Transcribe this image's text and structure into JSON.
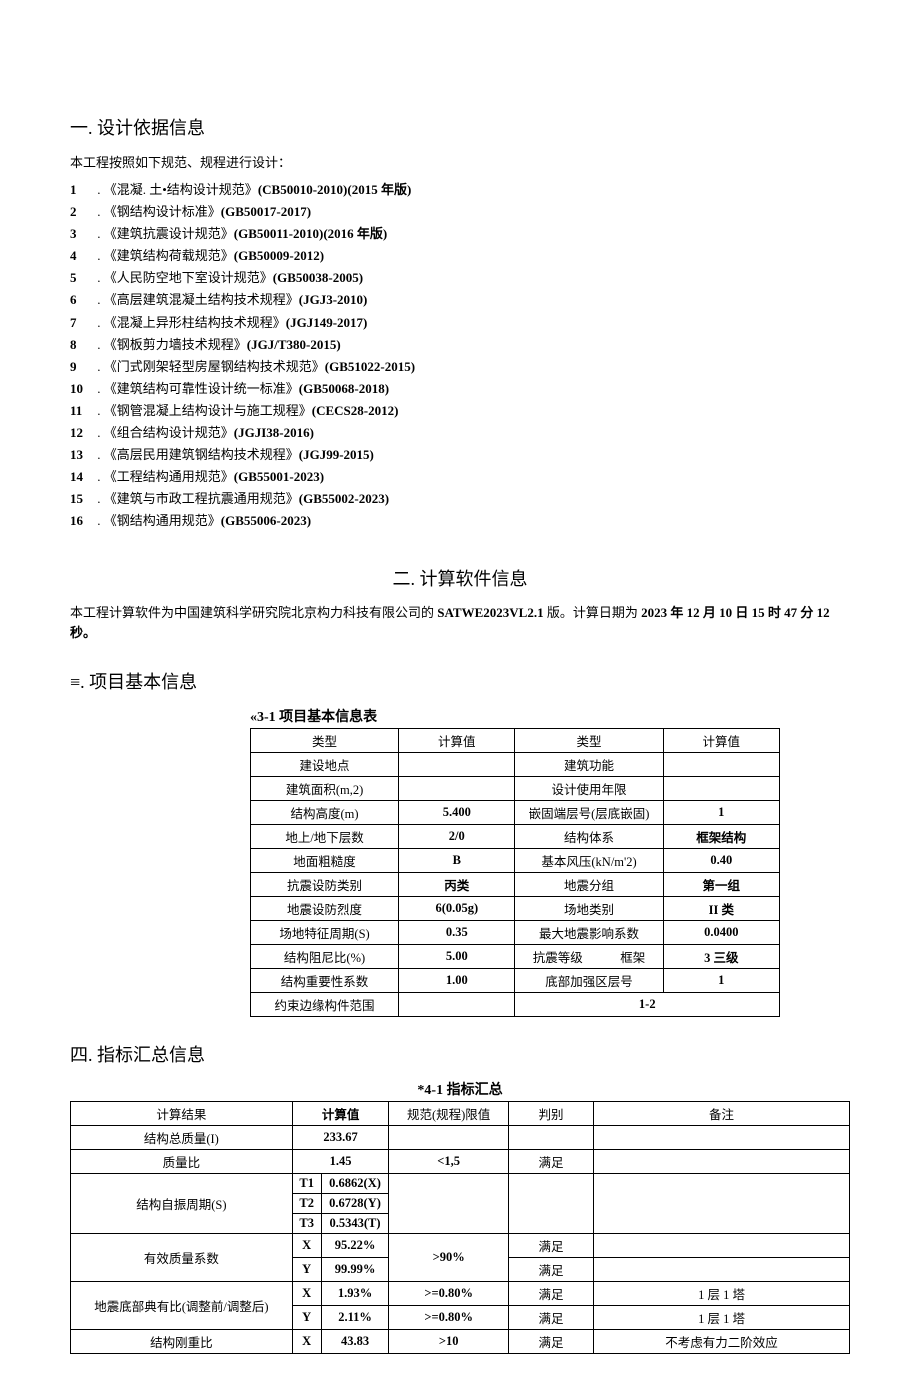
{
  "section1": {
    "heading": "一. 设计依据信息",
    "intro": "本工程按照如下规范、规程进行设计：",
    "items": [
      {
        "n": "1",
        "name": "《混凝. 土•结构设计规范》",
        "code": "(CB50010-2010)(2015 年版)"
      },
      {
        "n": "2",
        "name": "《钢结构设计标准》",
        "code": "(GB50017-2017)"
      },
      {
        "n": "3",
        "name": "《建筑抗震设计规范》",
        "code": "(GB50011-2010)(2016 年版)"
      },
      {
        "n": "4",
        "name": "《建筑结构荷载规范》",
        "code": "(GB50009-2012)"
      },
      {
        "n": "5",
        "name": "《人民防空地下室设计规范》",
        "code": "(GB50038-2005)"
      },
      {
        "n": "6",
        "name": "《高层建筑混凝土结构技术规程》",
        "code": "(JGJ3-2010)"
      },
      {
        "n": "7",
        "name": "《混凝上异形柱结构技术规程》",
        "code": "(JGJ149-2017)"
      },
      {
        "n": "8",
        "name": "《钢板剪力墙技术规程》",
        "code": "(JGJ/T380-2015)"
      },
      {
        "n": "9",
        "name": "《门式刚架轻型房屋钢结构技术规范》",
        "code": "(GB51022-2015)"
      },
      {
        "n": "10",
        "name": "《建筑结构可靠性设计统一标准》",
        "code": "(GB50068-2018)"
      },
      {
        "n": "11",
        "name": "《钢管混凝上结构设计与施工规程》",
        "code": "(CECS28-2012)"
      },
      {
        "n": "12",
        "name": "《组合结构设计规范》",
        "code": "(JGJI38-2016)"
      },
      {
        "n": "13",
        "name": "《高层民用建筑钢结构技术规程》",
        "code": "(JGJ99-2015)"
      },
      {
        "n": "14",
        "name": "《工程结构通用规范》",
        "code": "(GB55001-2023)"
      },
      {
        "n": "15",
        "name": "《建筑与市政工程抗震通用规范》",
        "code": "(GB55002-2023)"
      },
      {
        "n": "16",
        "name": "《钢结构通用规范》",
        "code": "(GB55006-2023)"
      }
    ]
  },
  "section2": {
    "heading": "二. 计算软件信息",
    "text_prefix": "本工程计算软件为中国建筑科学研究院北京构力科技有限公司的 ",
    "software": "SATWE2023VL2.1",
    "text_mid": "版。计算日期为 ",
    "date": "2023 年 12 月 10 日 15 时 47 分 12 秒。"
  },
  "section3": {
    "heading": "≡. 项目基本信息",
    "caption": "«3-1 项目基本信息表",
    "header": {
      "c1": "类型",
      "c2": "计算值",
      "c3": "类型",
      "c4": "计算值"
    },
    "rows": [
      {
        "a": "建设地点",
        "b": "",
        "c": "建筑功能",
        "d": ""
      },
      {
        "a": "建筑面积(m,2)",
        "b": "",
        "c": "设计使用年限",
        "d": ""
      },
      {
        "a": "结构高度(m)",
        "b": "5.400",
        "c": "嵌固端层号(层底嵌固)",
        "d": "1"
      },
      {
        "a": "地上/地下层数",
        "b": "2/0",
        "c": "结构体系",
        "d": "框架结构"
      },
      {
        "a": "地面粗糙度",
        "b": "B",
        "c": "基本风压(kN/m'2)",
        "d": "0.40"
      },
      {
        "a": "抗震设防类别",
        "b": "丙类",
        "c": "地震分组",
        "d": "第一组"
      },
      {
        "a": "地震设防烈度",
        "b": "6(0.05g)",
        "c": "场地类别",
        "d": "II 类"
      },
      {
        "a": "场地特征周期(S)",
        "b": "0.35",
        "c": "最大地震影响系数",
        "d": "0.0400"
      },
      {
        "a": "结构阻尼比(%)",
        "b": "5.00",
        "c": "抗震等级　　　框架",
        "d": "3 三级"
      },
      {
        "a": "结构重要性系数",
        "b": "1.00",
        "c": "底部加强区层号",
        "d": "1"
      }
    ],
    "lastrow": {
      "a": "约束边缘构件范围",
      "b": "",
      "cd": "1-2"
    }
  },
  "section4": {
    "heading": "四. 指标汇总信息",
    "caption": "*4-1 指标汇总",
    "header": {
      "c1": "计算结果",
      "c23": "计算值",
      "c4": "规范(规程)限值",
      "c5": "判别",
      "c6": "备注"
    },
    "mass_label": "结构总质量(I)",
    "mass_val": "233.67",
    "ratio_label": "质量比",
    "ratio_val": "1.45",
    "ratio_lim": "<1,5",
    "ratio_jud": "满足",
    "period_label": "结构自振周期(S)",
    "period_t1k": "T1",
    "period_t1v": "0.6862(X)",
    "period_t2k": "T2",
    "period_t2v": "0.6728(Y)",
    "period_t3k": "T3",
    "period_t3v": "0.5343(T)",
    "effmass_label": "有效质量系数",
    "effmass_xk": "X",
    "effmass_xv": "95.22%",
    "effmass_lim": ">90%",
    "effmass_xj": "满足",
    "effmass_yk": "Y",
    "effmass_yv": "99.99%",
    "effmass_yj": "满足",
    "seis_label": "地震底部典有比(调整前/调整后)",
    "seis_xk": "X",
    "seis_xv": "1.93%",
    "seis_xlim": ">=0.80%",
    "seis_xj": "满足",
    "seis_xn": "1 层 1 塔",
    "seis_yk": "Y",
    "seis_yv": "2.11%",
    "seis_ylim": ">=0.80%",
    "seis_yj": "满足",
    "seis_yn": "1 层 1 塔",
    "stiff_label": "结构刚重比",
    "stiff_k": "X",
    "stiff_v": "43.83",
    "stiff_lim": ">10",
    "stiff_j": "满足",
    "stiff_n": "不考虑有力二阶效应"
  }
}
